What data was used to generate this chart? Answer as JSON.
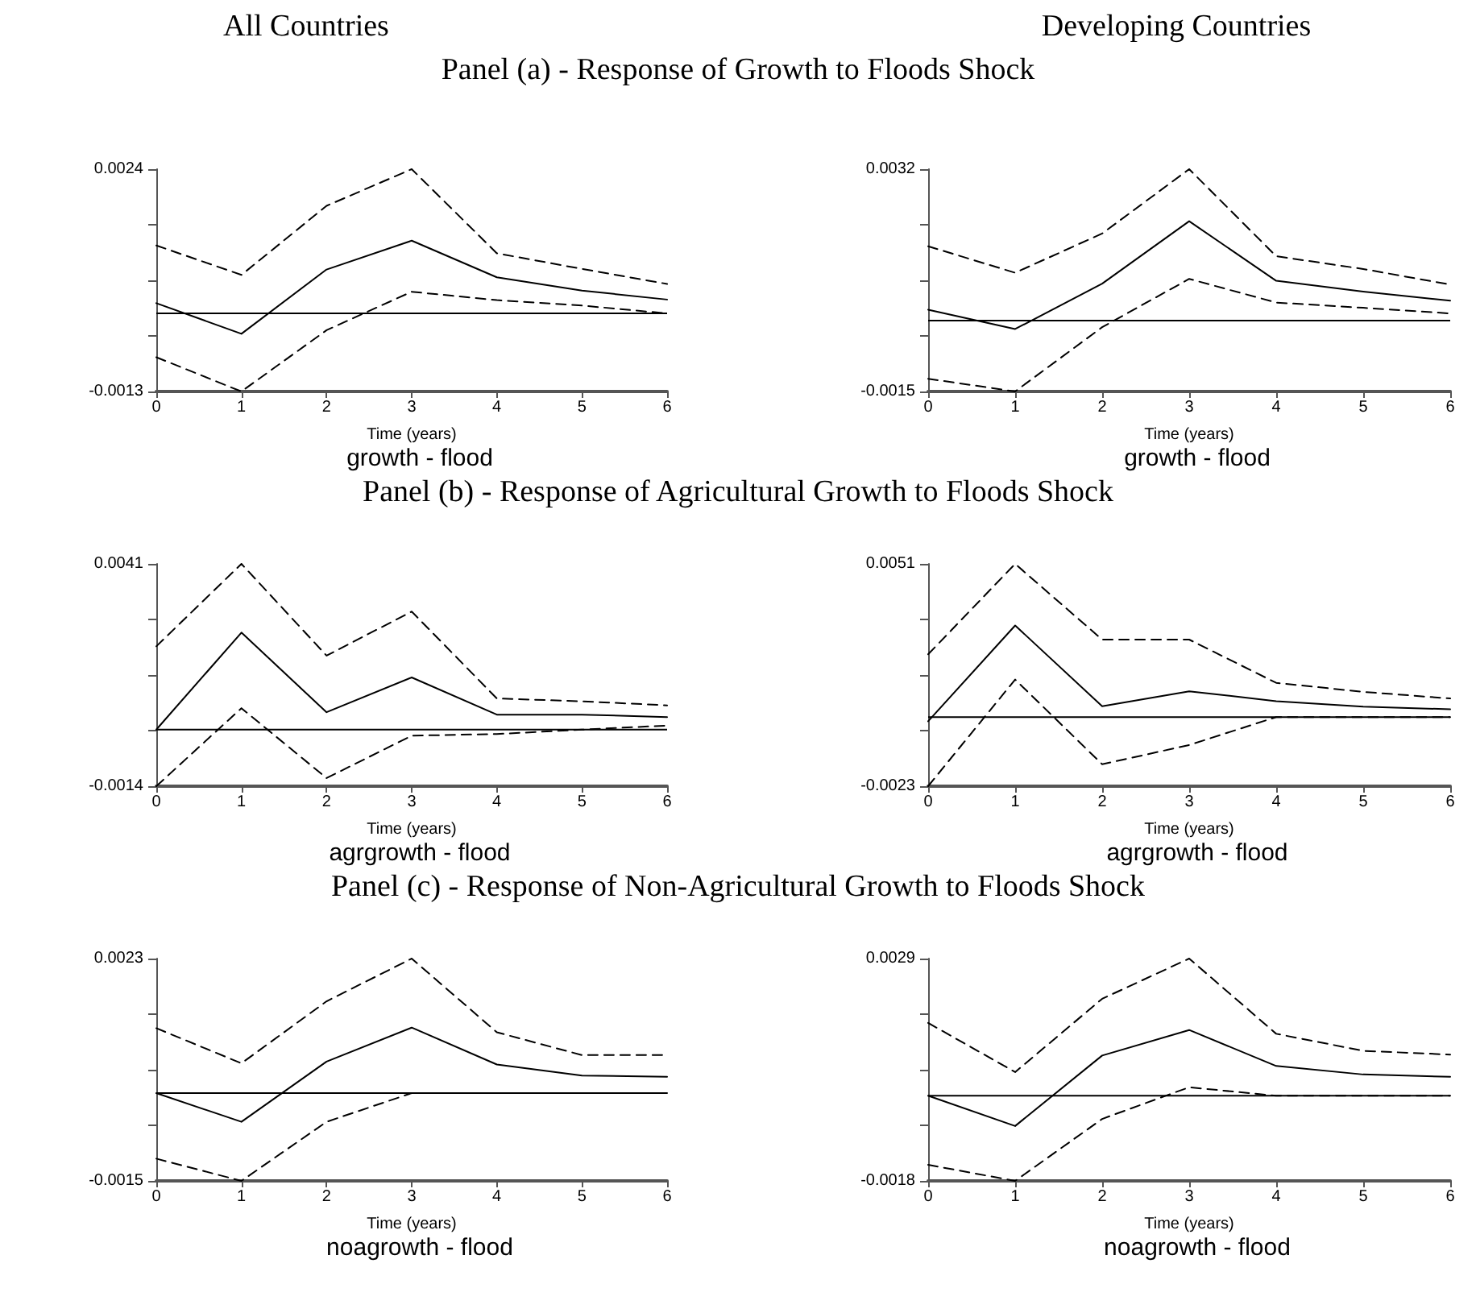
{
  "chart_data": [
    {
      "type": "line",
      "title": "All Countries",
      "subtitle": "Panel (a) - Response of Growth to Floods Shock",
      "xlabel": "Time (years)",
      "annotations": [
        "growth - flood"
      ],
      "x": [
        0,
        1,
        2,
        3,
        4,
        5,
        6
      ],
      "xlim": [
        0,
        6
      ],
      "xticks": [
        0,
        1,
        2,
        3,
        4,
        5,
        6
      ],
      "ylim": [
        -0.0013,
        0.0024
      ],
      "yticks": [
        -0.0013,
        {
          "value": -0.000375,
          "label": null
        },
        {
          "value": 0.00055,
          "label": null
        },
        {
          "value": 0.001475,
          "label": null
        },
        0.0024
      ],
      "grid": false,
      "marker": "none",
      "ref_lines": [
        {
          "axis": "y",
          "value": 0,
          "color": "#000000",
          "line_style": "solid"
        }
      ],
      "series": [
        {
          "color": "#000000",
          "line_style": "solid",
          "values": [
            0.00017,
            -0.00034,
            0.00073,
            0.00121,
            0.0006,
            0.00038,
            0.00023
          ]
        },
        {
          "color": "#000000",
          "line_style": "dashed",
          "values": [
            0.00113,
            0.00064,
            0.00179,
            0.0024,
            0.001,
            0.00074,
            0.00049
          ]
        },
        {
          "color": "#000000",
          "line_style": "dashed",
          "values": [
            -0.00073,
            -0.0013,
            -0.00028,
            0.00036,
            0.00022,
            0.00013,
            0
          ]
        }
      ]
    },
    {
      "type": "line",
      "title": "Developing Countries",
      "xlabel": "Time (years)",
      "annotations": [
        "growth - flood"
      ],
      "x": [
        0,
        1,
        2,
        3,
        4,
        5,
        6
      ],
      "xlim": [
        0,
        6
      ],
      "xticks": [
        0,
        1,
        2,
        3,
        4,
        5,
        6
      ],
      "ylim": [
        -0.0015,
        0.0032
      ],
      "yticks": [
        -0.0015,
        {
          "value": -0.000325,
          "label": null
        },
        {
          "value": 0.00085,
          "label": null
        },
        {
          "value": 0.002025,
          "label": null
        },
        0.0032
      ],
      "grid": false,
      "marker": "none",
      "ref_lines": [
        {
          "axis": "y",
          "value": 0,
          "color": "#000000",
          "line_style": "solid"
        }
      ],
      "series": [
        {
          "color": "#000000",
          "line_style": "solid",
          "values": [
            0.00023,
            -0.00018,
            0.00078,
            0.0021,
            0.00084,
            0.00061,
            0.00042
          ]
        },
        {
          "color": "#000000",
          "line_style": "dashed",
          "values": [
            0.00157,
            0.00101,
            0.00184,
            0.0032,
            0.00136,
            0.00109,
            0.00076
          ]
        },
        {
          "color": "#000000",
          "line_style": "dashed",
          "values": [
            -0.00123,
            -0.0015,
            -0.00014,
            0.00088,
            0.00038,
            0.00027,
            0.00015
          ]
        }
      ]
    },
    {
      "type": "line",
      "subtitle": "Panel (b) - Response of Agricultural Growth to Floods Shock",
      "xlabel": "Time (years)",
      "annotations": [
        "agrgrowth - flood"
      ],
      "x": [
        0,
        1,
        2,
        3,
        4,
        5,
        6
      ],
      "xlim": [
        0,
        6
      ],
      "xticks": [
        0,
        1,
        2,
        3,
        4,
        5,
        6
      ],
      "ylim": [
        -0.0014,
        0.0041
      ],
      "yticks": [
        -0.0014,
        {
          "value": -2.5e-05,
          "label": null
        },
        {
          "value": 0.00135,
          "label": null
        },
        {
          "value": 0.002725,
          "label": null
        },
        0.0041
      ],
      "grid": false,
      "marker": "none",
      "ref_lines": [
        {
          "axis": "y",
          "value": 0,
          "color": "#000000",
          "line_style": "solid"
        }
      ],
      "series": [
        {
          "color": "#000000",
          "line_style": "solid",
          "values": [
            0,
            0.0024,
            0.00043,
            0.00129,
            0.00037,
            0.00037,
            0.00031
          ]
        },
        {
          "color": "#000000",
          "line_style": "dashed",
          "values": [
            0.00206,
            0.0041,
            0.00183,
            0.00292,
            0.00077,
            0.0007,
            0.0006
          ]
        },
        {
          "color": "#000000",
          "line_style": "dashed",
          "values": [
            -0.0014,
            0.00053,
            -0.0012,
            -0.00015,
            -0.00011,
            0,
            0.0001
          ]
        }
      ]
    },
    {
      "type": "line",
      "xlabel": "Time (years)",
      "annotations": [
        "agrgrowth - flood"
      ],
      "x": [
        0,
        1,
        2,
        3,
        4,
        5,
        6
      ],
      "xlim": [
        0,
        6
      ],
      "xticks": [
        0,
        1,
        2,
        3,
        4,
        5,
        6
      ],
      "ylim": [
        -0.0023,
        0.0051
      ],
      "yticks": [
        -0.0023,
        {
          "value": -0.00045,
          "label": null
        },
        {
          "value": 0.0014,
          "label": null
        },
        {
          "value": 0.00325,
          "label": null
        },
        0.0051
      ],
      "grid": false,
      "marker": "none",
      "ref_lines": [
        {
          "axis": "y",
          "value": 0,
          "color": "#000000",
          "line_style": "solid"
        }
      ],
      "series": [
        {
          "color": "#000000",
          "line_style": "solid",
          "values": [
            -0.00014,
            0.00305,
            0.00036,
            0.00086,
            0.00053,
            0.00035,
            0.00026
          ]
        },
        {
          "color": "#000000",
          "line_style": "dashed",
          "values": [
            0.00209,
            0.0051,
            0.00258,
            0.00258,
            0.00114,
            0.00084,
            0.00062
          ]
        },
        {
          "color": "#000000",
          "line_style": "dashed",
          "values": [
            -0.0023,
            0.00125,
            -0.00157,
            -0.00093,
            0,
            0,
            0
          ]
        }
      ]
    },
    {
      "type": "line",
      "subtitle": "Panel (c) - Response of Non-Agricultural Growth to Floods Shock",
      "xlabel": "Time (years)",
      "annotations": [
        "noagrowth - flood"
      ],
      "x": [
        0,
        1,
        2,
        3,
        4,
        5,
        6
      ],
      "xlim": [
        0,
        6
      ],
      "xticks": [
        0,
        1,
        2,
        3,
        4,
        5,
        6
      ],
      "ylim": [
        -0.0015,
        0.0023
      ],
      "yticks": [
        -0.0015,
        {
          "value": -0.00055,
          "label": null
        },
        {
          "value": 0.0004,
          "label": null
        },
        {
          "value": 0.00135,
          "label": null
        },
        0.0023
      ],
      "grid": false,
      "marker": "none",
      "ref_lines": [
        {
          "axis": "y",
          "value": 0,
          "color": "#000000",
          "line_style": "solid"
        }
      ],
      "series": [
        {
          "color": "#000000",
          "line_style": "solid",
          "values": [
            0,
            -0.00049,
            0.00054,
            0.00112,
            0.00049,
            0.0003,
            0.00028
          ]
        },
        {
          "color": "#000000",
          "line_style": "dashed",
          "values": [
            0.00111,
            0.00051,
            0.00157,
            0.0023,
            0.00104,
            0.00065,
            0.00065
          ]
        },
        {
          "color": "#000000",
          "line_style": "dashed",
          "values": [
            -0.00112,
            -0.0015,
            -0.00049,
            0,
            0,
            0,
            0
          ]
        }
      ]
    },
    {
      "type": "line",
      "xlabel": "Time (years)",
      "annotations": [
        "noagrowth - flood"
      ],
      "x": [
        0,
        1,
        2,
        3,
        4,
        5,
        6
      ],
      "xlim": [
        0,
        6
      ],
      "xticks": [
        0,
        1,
        2,
        3,
        4,
        5,
        6
      ],
      "ylim": [
        -0.0018,
        0.0029
      ],
      "yticks": [
        -0.0018,
        {
          "value": -0.000625,
          "label": null
        },
        {
          "value": 0.00055,
          "label": null
        },
        {
          "value": 0.001725,
          "label": null
        },
        0.0029
      ],
      "grid": false,
      "marker": "none",
      "ref_lines": [
        {
          "axis": "y",
          "value": 0,
          "color": "#000000",
          "line_style": "solid"
        }
      ],
      "series": [
        {
          "color": "#000000",
          "line_style": "solid",
          "values": [
            0,
            -0.00064,
            0.00085,
            0.00139,
            0.00063,
            0.00045,
            0.0004
          ]
        },
        {
          "color": "#000000",
          "line_style": "dashed",
          "values": [
            0.00154,
            0.0005,
            0.00205,
            0.0029,
            0.00131,
            0.00095,
            0.00087
          ]
        },
        {
          "color": "#000000",
          "line_style": "dashed",
          "values": [
            -0.00146,
            -0.0018,
            -0.00049,
            0.00018,
            0,
            0,
            0
          ]
        }
      ]
    }
  ]
}
